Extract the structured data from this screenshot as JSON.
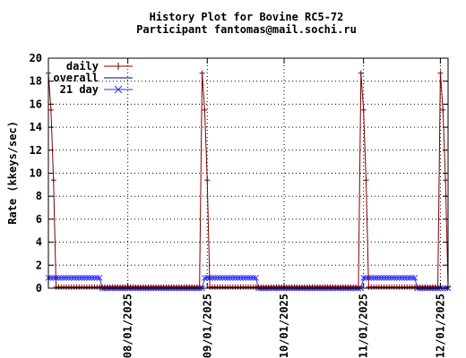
{
  "chart_data": {
    "type": "line",
    "title": "History Plot for Bovine RC5-72",
    "subtitle": "Participant fantomas@mail.sochi.ru",
    "ylabel": "Rate (kkeys/sec)",
    "xlabel": "",
    "ylim": [
      0,
      20
    ],
    "y_ticks": [
      "0",
      "2",
      "4",
      "6",
      "8",
      "10",
      "12",
      "14",
      "16",
      "18",
      "20"
    ],
    "x_ticks": [
      "08/01/2025",
      "09/01/2025",
      "10/01/2025",
      "11/01/2025",
      "12/01/2025"
    ],
    "x_tick_days": [
      31,
      62,
      92,
      123,
      153
    ],
    "x_range_days": [
      0,
      156
    ],
    "grid": true,
    "legend_position": "top-left",
    "series": [
      {
        "name": "daily",
        "color": "#7f0000",
        "marker": "plus",
        "burst_start_days": [
          0,
          60,
          122,
          153
        ],
        "burst_peak": 18.7,
        "burst_decay": [
          18.7,
          15.5,
          9.4
        ],
        "baseline": 0.1
      },
      {
        "name": "overall",
        "color": "#00007f",
        "marker": "none"
      },
      {
        "name": "21 day",
        "color": "#3030ff",
        "marker": "x",
        "segments": [
          {
            "from_day": 0,
            "to_day": 20,
            "value": 0.9
          },
          {
            "from_day": 21,
            "to_day": 60,
            "value": 0.0
          },
          {
            "from_day": 61,
            "to_day": 81,
            "value": 0.9
          },
          {
            "from_day": 82,
            "to_day": 122,
            "value": 0.0
          },
          {
            "from_day": 123,
            "to_day": 143,
            "value": 0.9
          },
          {
            "from_day": 144,
            "to_day": 156,
            "value": 0.0
          }
        ]
      }
    ]
  }
}
